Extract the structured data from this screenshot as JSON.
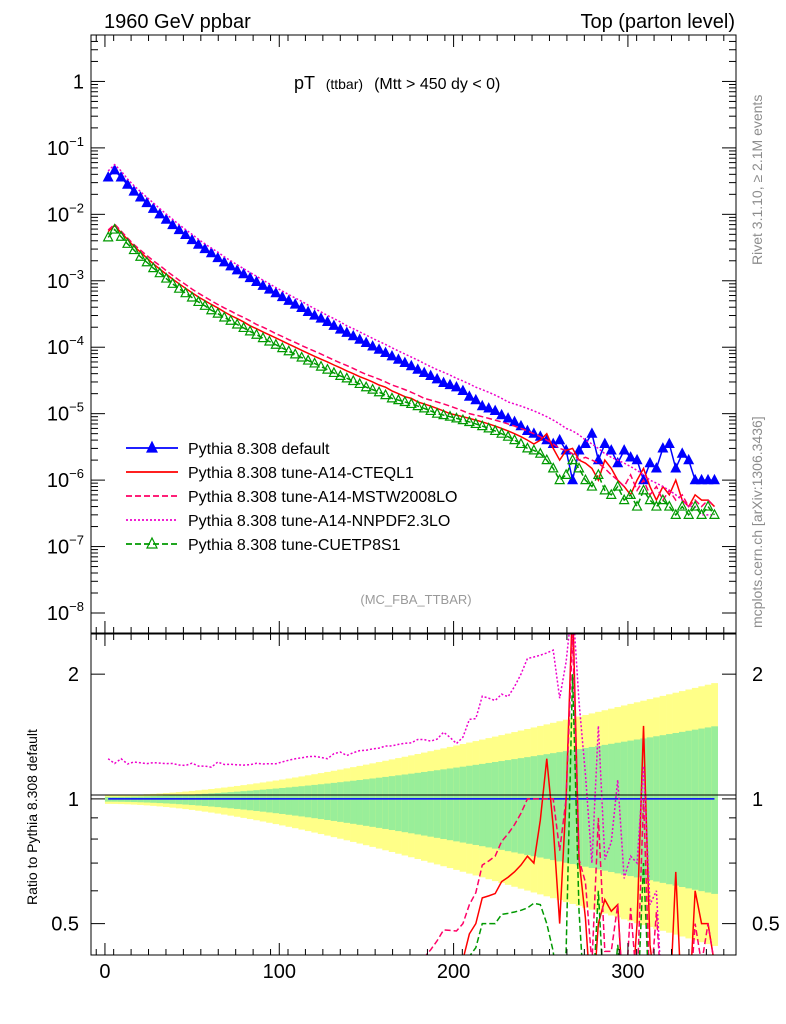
{
  "header": {
    "left": "1960 GeV ppbar",
    "right": "Top (parton level)"
  },
  "side_labels": {
    "rivet": "Rivet 3.1.10, ≥ 2.1M events",
    "source": "mcplots.cern.ch [arXiv:1306.3436]"
  },
  "plot_title": {
    "main": "pT",
    "sub": "(ttbar)",
    "cut": "(Mtt > 450 dy < 0)"
  },
  "watermark": "(MC_FBA_TTBAR)",
  "ratio_ylabel": "Ratio to Pythia 8.308 default",
  "chart_data": {
    "type": "line",
    "title": "pT (ttbar) (Mtt > 450 dy < 0)",
    "xlim": [
      -8,
      362
    ],
    "main": {
      "yscale": "log",
      "ylim": [
        5e-09,
        5
      ],
      "yticks": [
        {
          "v": 1,
          "b": "1",
          "e": ""
        },
        {
          "v": 0.1,
          "b": "10",
          "e": "−1"
        },
        {
          "v": 0.01,
          "b": "10",
          "e": "−2"
        },
        {
          "v": 0.001,
          "b": "10",
          "e": "−3"
        },
        {
          "v": 0.0001,
          "b": "10",
          "e": "−4"
        },
        {
          "v": 1e-05,
          "b": "10",
          "e": "−5"
        },
        {
          "v": 1e-06,
          "b": "10",
          "e": "−6"
        },
        {
          "v": 1e-07,
          "b": "10",
          "e": "−7"
        },
        {
          "v": 1e-08,
          "b": "10",
          "e": "−8"
        }
      ]
    },
    "ratio": {
      "yscale": "log",
      "ylim": [
        0.42,
        2.5
      ],
      "yticks": [
        {
          "v": 2,
          "label": "2"
        },
        {
          "v": 1,
          "label": "1"
        },
        {
          "v": 0.5,
          "label": "0.5"
        }
      ]
    },
    "xticks": [
      {
        "v": 0,
        "label": "0"
      },
      {
        "v": 100,
        "label": "100"
      },
      {
        "v": 200,
        "label": "200"
      },
      {
        "v": 300,
        "label": "300"
      }
    ],
    "legend_position": "bottom-left",
    "series": [
      {
        "name": "Pythia 8.308 default",
        "key": "default",
        "color": "#0000ff",
        "style": "solid",
        "marker": "triangle-filled",
        "values": [
          0.036,
          0.046,
          0.036,
          0.028,
          0.022,
          0.018,
          0.0148,
          0.0121,
          0.01,
          0.0083,
          0.0069,
          0.0058,
          0.0049,
          0.0041,
          0.0035,
          0.003,
          0.0026,
          0.0022,
          0.0019,
          0.00165,
          0.00144,
          0.00126,
          0.0011,
          0.00096,
          0.00084,
          0.00074,
          0.00065,
          0.00057,
          0.0005,
          0.00044,
          0.00039,
          0.00034,
          0.0003,
          0.00027,
          0.00024,
          0.00021,
          0.000185,
          0.000165,
          0.000147,
          0.00013,
          0.000116,
          0.000103,
          9.2e-05,
          8.2e-05,
          7.3e-05,
          6.5e-05,
          5.8e-05,
          5.2e-05,
          4.6e-05,
          4.1e-05,
          3.7e-05,
          3.3e-05,
          2.9e-05,
          2.7e-05,
          2.5e-05,
          2.2e-05,
          1.8e-05,
          1.6e-05,
          1.3e-05,
          1.2e-05,
          1.1e-05,
          9.5e-06,
          8.5e-06,
          7.5e-06,
          6.5e-06,
          5.5e-06,
          5e-06,
          4.5e-06,
          4e-06,
          3.5e-06,
          4e-06,
          2.8e-06,
          1e-06,
          2.8e-06,
          3.5e-06,
          5e-06,
          2e-06,
          3.5e-06,
          2.8e-06,
          1.8e-06,
          2.8e-06,
          2.2e-06,
          2e-06,
          1e-06,
          1.8e-06,
          1.5e-06,
          3e-06,
          3.5e-06,
          1.5e-06,
          2.5e-06,
          2e-06,
          1e-06,
          1e-06,
          1e-06,
          1e-06
        ]
      },
      {
        "name": "Pythia 8.308 tune-A14-CTEQL1",
        "key": "cteql1",
        "color": "#ff0000",
        "style": "solid",
        "marker": "none",
        "values": [
          0.0055,
          0.0068,
          0.0053,
          0.0042,
          0.0033,
          0.0027,
          0.0022,
          0.0018,
          0.0015,
          0.00126,
          0.00106,
          0.0009,
          0.00077,
          0.00066,
          0.00057,
          0.0005,
          0.00044,
          0.00039,
          0.00034,
          0.0003,
          0.00027,
          0.00024,
          0.00021,
          0.00019,
          0.00017,
          0.000153,
          0.000138,
          0.000124,
          0.000111,
          0.0001,
          9e-05,
          8.1e-05,
          7.3e-05,
          6.6e-05,
          6e-05,
          5.4e-05,
          4.9e-05,
          4.4e-05,
          4e-05,
          3.6e-05,
          3.3e-05,
          3e-05,
          2.7e-05,
          2.5e-05,
          2.2e-05,
          2e-05,
          1.8e-05,
          1.7e-05,
          1.5e-05,
          1.4e-05,
          1.3e-05,
          1.2e-05,
          1.1e-05,
          1e-05,
          9.5e-06,
          9e-06,
          8.5e-06,
          8e-06,
          7.5e-06,
          7e-06,
          6.5e-06,
          6e-06,
          5.5e-06,
          5e-06,
          4.5e-06,
          4e-06,
          3.5e-06,
          4e-06,
          5e-06,
          3e-06,
          2e-06,
          2.8e-06,
          3e-06,
          2e-06,
          1.8e-06,
          1.5e-06,
          1e-06,
          2e-06,
          1.5e-06,
          1e-06,
          8e-07,
          6e-07,
          1e-06,
          1.5e-06,
          8e-07,
          5e-07,
          8e-07,
          6e-07,
          1e-06,
          5e-07,
          4e-07,
          6e-07,
          5e-07,
          5e-07,
          4e-07
        ]
      },
      {
        "name": "Pythia 8.308 tune-A14-MSTW2008LO",
        "key": "mstw",
        "color": "#ff0066",
        "style": "dashed",
        "marker": "none",
        "values": [
          0.0058,
          0.0071,
          0.0056,
          0.0044,
          0.0035,
          0.0029,
          0.0024,
          0.002,
          0.0017,
          0.00142,
          0.0012,
          0.00102,
          0.00088,
          0.00075,
          0.00065,
          0.00057,
          0.0005,
          0.00044,
          0.00039,
          0.00035,
          0.00031,
          0.00028,
          0.00025,
          0.00022,
          0.0002,
          0.00018,
          0.00016,
          0.000145,
          0.00013,
          0.000118,
          0.000106,
          9.6e-05,
          8.7e-05,
          7.9e-05,
          7.1e-05,
          6.4e-05,
          5.8e-05,
          5.3e-05,
          4.8e-05,
          4.3e-05,
          3.9e-05,
          3.6e-05,
          3.3e-05,
          3e-05,
          2.7e-05,
          2.5e-05,
          2.3e-05,
          2.1e-05,
          1.9e-05,
          1.7e-05,
          1.6e-05,
          1.5e-05,
          1.4e-05,
          1.3e-05,
          1.2e-05,
          1.1e-05,
          1e-05,
          9.5e-06,
          9e-06,
          8.5e-06,
          8e-06,
          7.5e-06,
          7e-06,
          6.5e-06,
          6e-06,
          5.5e-06,
          5e-06,
          4.5e-06,
          4e-06,
          3.5e-06,
          3e-06,
          2.8e-06,
          2.5e-06,
          2e-06,
          2.2e-06,
          2e-06,
          1.8e-06,
          1.5e-06,
          1.2e-06,
          1e-06,
          8e-07,
          1.2e-06,
          7e-07,
          1e-06,
          6e-07,
          8e-07,
          5e-07,
          7e-07,
          5e-07,
          6e-07,
          4e-07,
          5e-07,
          4e-07,
          5e-07,
          4e-07
        ]
      },
      {
        "name": "Pythia 8.308 tune-A14-NNPDF2.3LO",
        "key": "nnpdf",
        "color": "#ee00cc",
        "style": "dotted",
        "marker": "none",
        "values": [
          0.045,
          0.056,
          0.045,
          0.034,
          0.027,
          0.022,
          0.018,
          0.0148,
          0.0122,
          0.0101,
          0.0084,
          0.007,
          0.0059,
          0.005,
          0.0042,
          0.0036,
          0.0031,
          0.0027,
          0.0023,
          0.002,
          0.00174,
          0.00152,
          0.00133,
          0.00117,
          0.00102,
          0.0009,
          0.00079,
          0.0007,
          0.00062,
          0.00055,
          0.00049,
          0.00043,
          0.00038,
          0.00034,
          0.0003,
          0.00027,
          0.00024,
          0.00021,
          0.00019,
          0.00017,
          0.000152,
          0.000136,
          0.000122,
          0.00011,
          9.8e-05,
          8.8e-05,
          7.9e-05,
          7.1e-05,
          6.4e-05,
          5.7e-05,
          5.1e-05,
          4.6e-05,
          4.2e-05,
          3.8e-05,
          3.4e-05,
          3.1e-05,
          2.8e-05,
          2.5e-05,
          2.3e-05,
          2.1e-05,
          1.9e-05,
          1.7e-05,
          1.5e-05,
          1.4e-05,
          1.3e-05,
          1.2e-05,
          1.1e-05,
          1e-05,
          9e-06,
          8e-06,
          7e-06,
          6e-06,
          5.5e-06,
          4.8e-06,
          4e-06,
          3.5e-06,
          3e-06,
          2.5e-06,
          2.2e-06,
          2e-06,
          1.8e-06,
          1.6e-06,
          1.4e-06,
          1.2e-06,
          1e-06,
          9e-07,
          8e-07,
          7e-07,
          6e-07,
          5e-07,
          4e-07,
          4e-07,
          3e-07,
          3e-07,
          3e-07
        ]
      },
      {
        "name": "Pythia 8.308 tune-CUETP8S1",
        "key": "cuetp8s1",
        "color": "#009900",
        "style": "dashed",
        "marker": "triangle-open",
        "values": [
          0.0045,
          0.0059,
          0.0046,
          0.0036,
          0.0029,
          0.0023,
          0.0019,
          0.00155,
          0.0013,
          0.00108,
          0.0009,
          0.00076,
          0.00065,
          0.00056,
          0.00048,
          0.00042,
          0.00036,
          0.00032,
          0.00028,
          0.00025,
          0.00022,
          0.000195,
          0.000173,
          0.000154,
          0.000137,
          0.000122,
          0.000109,
          9.7e-05,
          8.7e-05,
          7.8e-05,
          7e-05,
          6.3e-05,
          5.7e-05,
          5.1e-05,
          4.6e-05,
          4.1e-05,
          3.7e-05,
          3.4e-05,
          3.1e-05,
          2.8e-05,
          2.5e-05,
          2.3e-05,
          2.1e-05,
          1.9e-05,
          1.7e-05,
          1.6e-05,
          1.5e-05,
          1.4e-05,
          1.3e-05,
          1.2e-05,
          1.1e-05,
          1e-05,
          9.5e-06,
          9e-06,
          8.5e-06,
          8e-06,
          7.5e-06,
          7e-06,
          6.5e-06,
          6e-06,
          5.5e-06,
          5e-06,
          4.5e-06,
          4e-06,
          3.5e-06,
          3e-06,
          2.8e-06,
          2.5e-06,
          2e-06,
          1.5e-06,
          1e-06,
          1.2e-06,
          2e-06,
          1.5e-06,
          1e-06,
          8e-07,
          1.2e-06,
          7e-07,
          6e-07,
          8e-07,
          5e-07,
          6e-07,
          4e-07,
          7e-07,
          5e-07,
          4e-07,
          5e-07,
          4e-07,
          3e-07,
          4e-07,
          3e-07,
          4e-07,
          3e-07,
          4e-07,
          3e-07
        ]
      }
    ]
  }
}
